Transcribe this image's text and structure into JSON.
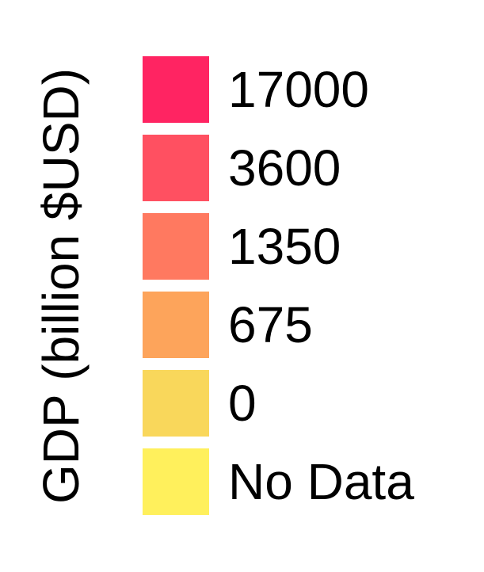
{
  "legend": {
    "title": "GDP (billion $USD)",
    "items": [
      {
        "label": "17000",
        "color": "#FF2462"
      },
      {
        "label": "3600",
        "color": "#FF5061"
      },
      {
        "label": "1350",
        "color": "#FF7960"
      },
      {
        "label": "675",
        "color": "#FDA45B"
      },
      {
        "label": "0",
        "color": "#F9D75B"
      },
      {
        "label": "No Data",
        "color": "#FFF05C"
      }
    ]
  }
}
